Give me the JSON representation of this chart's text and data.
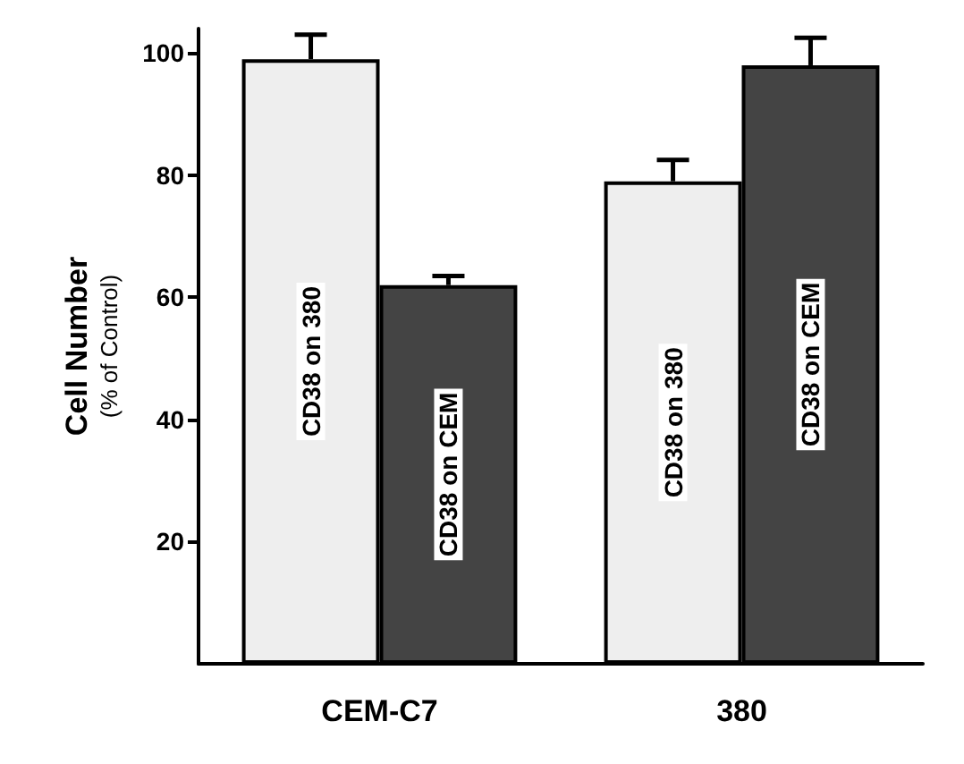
{
  "chart_data": {
    "type": "bar",
    "ylabel": "Cell Number\n(% of Control)",
    "categories": [
      "CEM-C7",
      "380"
    ],
    "series": [
      {
        "name": "CD38 on 380",
        "color": "#eeeeee",
        "values": [
          99,
          79
        ],
        "errors": [
          [
            99,
            103
          ],
          [
            79,
            82.5
          ]
        ]
      },
      {
        "name": "CD38 on CEM",
        "color": "#444444",
        "values": [
          62,
          98
        ],
        "errors": [
          [
            62,
            63.5
          ],
          [
            98,
            102.5
          ]
        ]
      }
    ],
    "ylim": [
      0,
      104
    ],
    "yticks": [
      20,
      40,
      60,
      80,
      100
    ],
    "grid": false,
    "legend": false
  }
}
